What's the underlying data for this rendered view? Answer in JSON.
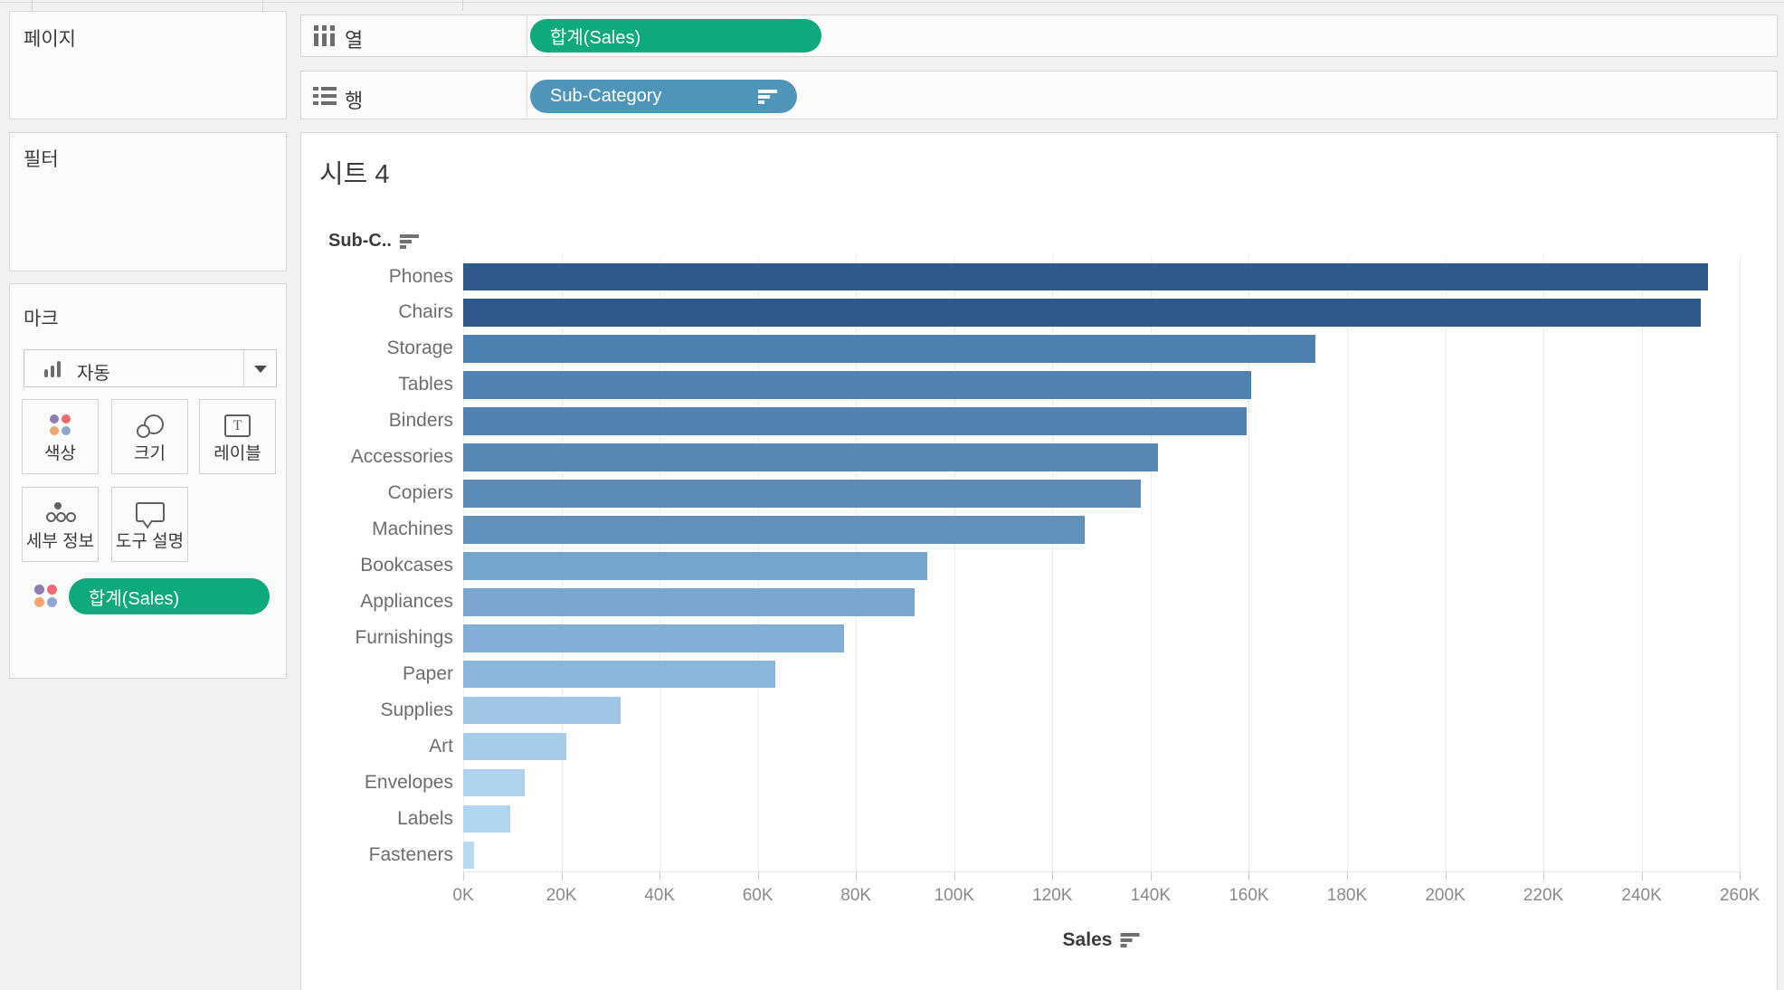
{
  "app": {
    "background": "#f1f1f0",
    "card_bg": "#fbfbfa",
    "border": "#d8d6d4",
    "green_pill": "#0ea97c",
    "blue_pill": "#4f95ba"
  },
  "shelf": {
    "columns_label": "열",
    "columns_pill": "합계(Sales)",
    "rows_label": "행",
    "rows_pill": "Sub-Category"
  },
  "sidebar": {
    "pages_title": "페이지",
    "filters_title": "필터",
    "marks_title": "마크",
    "mark_type": "자동",
    "buttons": {
      "color": "색상",
      "size": "크기",
      "label": "레이블",
      "detail": "세부 정보",
      "tooltip": "도구 설명"
    },
    "marks_pill": "합계(Sales)"
  },
  "chart": {
    "sheet_title": "시트 4",
    "row_header": "Sub-C..",
    "axis_title": "Sales"
  },
  "chart_data": {
    "type": "bar",
    "orientation": "horizontal",
    "title": "시트 4",
    "categories": [
      "Phones",
      "Chairs",
      "Storage",
      "Tables",
      "Binders",
      "Accessories",
      "Copiers",
      "Machines",
      "Bookcases",
      "Appliances",
      "Furnishings",
      "Paper",
      "Supplies",
      "Art",
      "Envelopes",
      "Labels",
      "Fasteners"
    ],
    "values": [
      253.5,
      252,
      173.5,
      160.5,
      159.5,
      141.5,
      138,
      126.5,
      94.5,
      92,
      77.5,
      63.5,
      32,
      21,
      12.5,
      9.5,
      2.2
    ],
    "value_unit": "K",
    "xlabel": "Sales",
    "ylabel": "Sub-Category",
    "x_ticks": [
      "0K",
      "20K",
      "40K",
      "60K",
      "80K",
      "100K",
      "120K",
      "140K",
      "160K",
      "180K",
      "200K",
      "220K",
      "240K",
      "260K"
    ],
    "xlim": [
      0,
      260
    ],
    "sort": "descending",
    "grid": "vertical-light",
    "bar_colors": [
      "#2d5a88",
      "#2d5a88",
      "#4e80ad",
      "#5283b0",
      "#5283b0",
      "#5988b4",
      "#5c8bb7",
      "#6190bb",
      "#75a4cc",
      "#78a6ce",
      "#81aed4",
      "#8ab6da",
      "#9fc7e5",
      "#a5cce8",
      "#aed3ed",
      "#b0d5ee",
      "#b7daf1"
    ]
  }
}
